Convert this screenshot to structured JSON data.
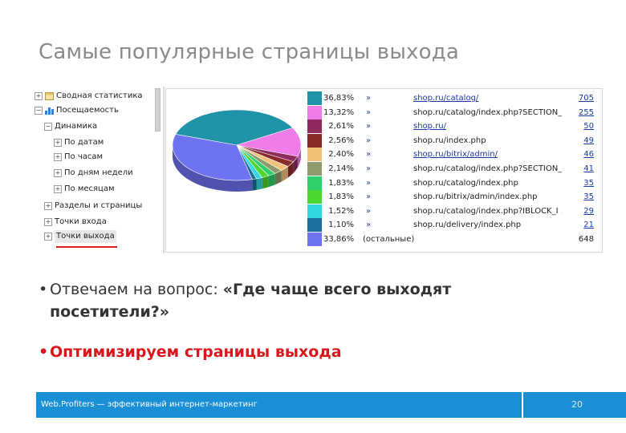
{
  "slide": {
    "title": "Самые популярные страницы выхода",
    "bullet1_prefix": "Отвечаем на вопрос: ",
    "bullet1_bold": "«Где чаще всего выходят",
    "bullet1_bold_line2": "посетители?»",
    "bullet2": "Оптимизируем страницы выхода",
    "bullet_char": "•",
    "footer_text": "Web.Profiters — эффективный интернет-маркетинг",
    "page_number": "20",
    "colors": {
      "title": "#8a8a8a",
      "highlight": "#d8161b",
      "footer": "#1a8fd6"
    }
  },
  "tree": {
    "items": [
      {
        "label": "Сводная статистика",
        "toggle": "+",
        "icon": "report-icon"
      },
      {
        "label": "Посещаемость",
        "toggle": "−",
        "icon": "bar-chart-icon"
      },
      {
        "label": "Динамика",
        "toggle": "−"
      },
      {
        "label": "По датам",
        "toggle": "+"
      },
      {
        "label": "По часам",
        "toggle": "+"
      },
      {
        "label": "По дням недели",
        "toggle": "+"
      },
      {
        "label": "По месяцам",
        "toggle": "+"
      },
      {
        "label": "Разделы и страницы",
        "toggle": "+"
      },
      {
        "label": "Точки входа",
        "toggle": "+"
      },
      {
        "label": "Точки выхода",
        "toggle": "+",
        "selected": true
      }
    ]
  },
  "legend": {
    "arrow": "»",
    "rest_label": "(остальные)",
    "rows": [
      {
        "pct": "36,83%",
        "url": "shop.ru/catalog/",
        "count": "705",
        "color": "#1f93a8"
      },
      {
        "pct": "13,32%",
        "url": "shop.ru/catalog/index.php?SECTION_ ...",
        "count": "255",
        "color": "#ee7de9"
      },
      {
        "pct": "2,61%",
        "url": "shop.ru/",
        "count": "50",
        "color": "#8e2a5c"
      },
      {
        "pct": "2,56%",
        "url": "shop.ru/index.php",
        "count": "49",
        "color": "#8a2b2b"
      },
      {
        "pct": "2,40%",
        "url": "shop.ru/bitrix/admin/",
        "count": "46",
        "color": "#f1c27a"
      },
      {
        "pct": "2,14%",
        "url": "shop.ru/catalog/index.php?SECTION_ ...",
        "count": "41",
        "color": "#8f9a6a"
      },
      {
        "pct": "1,83%",
        "url": "shop.ru/catalog/index.php",
        "count": "35",
        "color": "#2ecf6a"
      },
      {
        "pct": "1,83%",
        "url": "shop.ru/bitrix/admin/index.php",
        "count": "35",
        "color": "#4cd630"
      },
      {
        "pct": "1,52%",
        "url": "shop.ru/catalog/index.php?IBLOCK_I ...",
        "count": "29",
        "color": "#34d6e0"
      },
      {
        "pct": "1,10%",
        "url": "shop.ru/delivery/index.php",
        "count": "21",
        "color": "#1c6fa0"
      },
      {
        "pct": "33,86%",
        "url": "",
        "count": "648",
        "color": "#6f73f0",
        "rest": true
      }
    ]
  }
}
